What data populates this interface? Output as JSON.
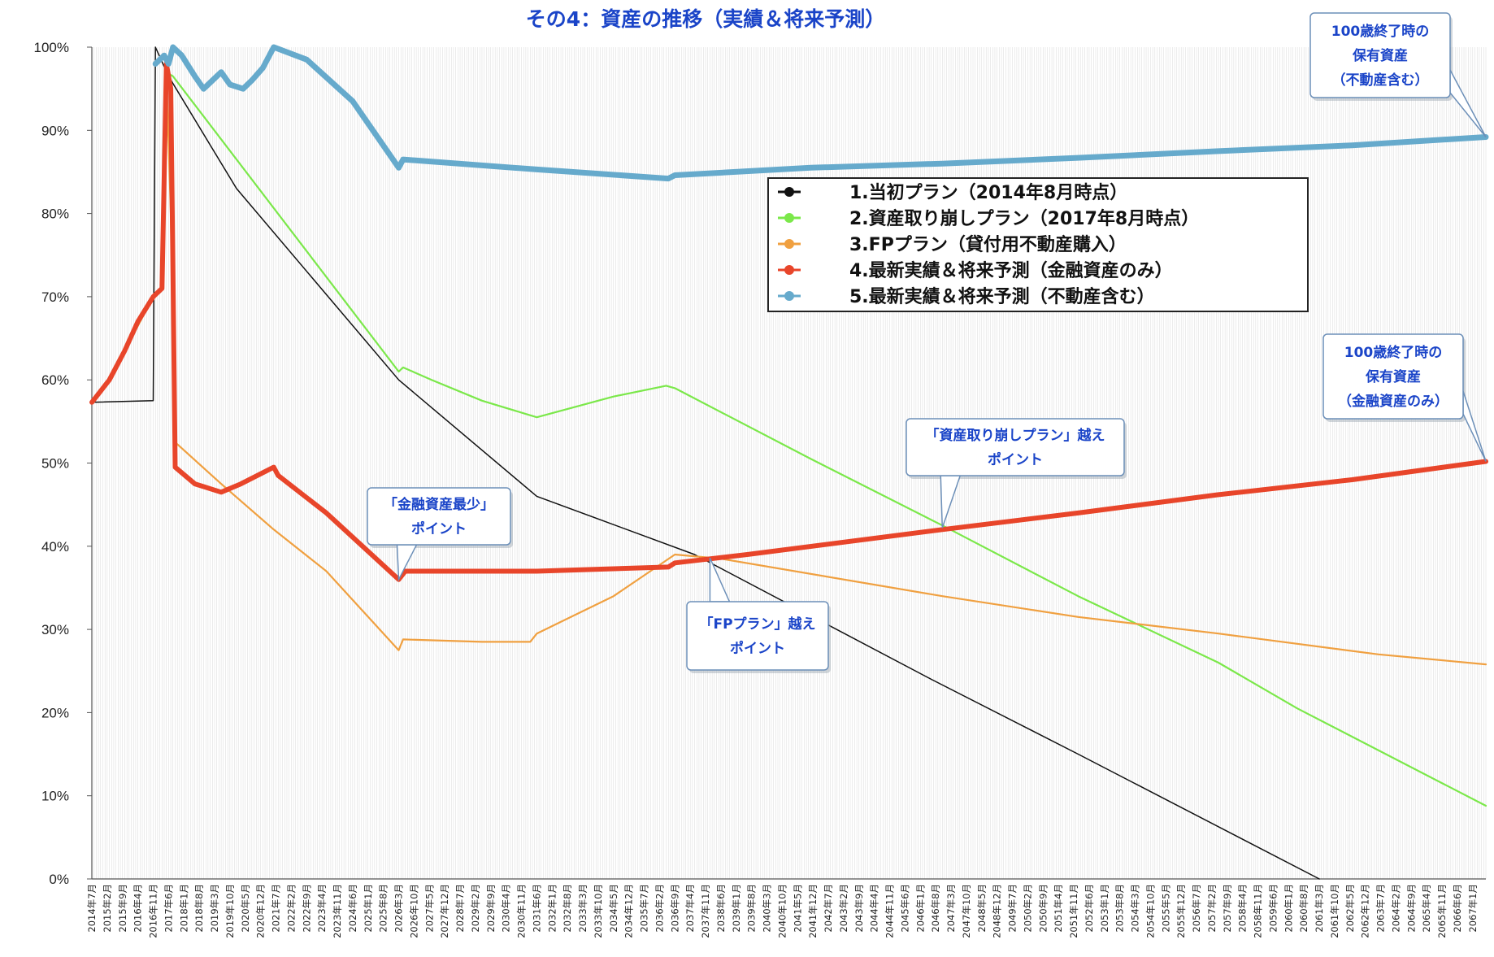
{
  "chart_data": {
    "type": "line",
    "title": "その4：資産の推移（実績＆将来予測）",
    "xlabel": "",
    "ylabel": "",
    "ylim": [
      0,
      100
    ],
    "yticks": [
      "0%",
      "10%",
      "20%",
      "30%",
      "40%",
      "50%",
      "60%",
      "70%",
      "80%",
      "90%",
      "100%"
    ],
    "grid": "vertical",
    "legend_position": "upper-center",
    "x_start": "2014-07",
    "x_end": "2067-07",
    "x_tick_labels": [
      "2014年7月",
      "2015年2月",
      "2015年9月",
      "2016年4月",
      "2016年11月",
      "2017年6月",
      "2018年1月",
      "2018年8月",
      "2019年3月",
      "2019年10月",
      "2020年5月",
      "2020年12月",
      "2021年7月",
      "2022年2月",
      "2022年9月",
      "2023年4月",
      "2023年11月",
      "2024年6月",
      "2025年1月",
      "2025年8月",
      "2026年3月",
      "2026年10月",
      "2027年5月",
      "2027年12月",
      "2028年7月",
      "2029年2月",
      "2029年9月",
      "2030年4月",
      "2030年11月",
      "2031年6月",
      "2032年1月",
      "2032年8月",
      "2033年3月",
      "2033年10月",
      "2034年5月",
      "2034年12月",
      "2035年7月",
      "2036年2月",
      "2036年9月",
      "2037年4月",
      "2037年11月",
      "2038年6月",
      "2039年1月",
      "2039年8月",
      "2040年3月",
      "2040年10月",
      "2041年5月",
      "2041年12月",
      "2042年7月",
      "2043年2月",
      "2043年9月",
      "2044年4月",
      "2044年11月",
      "2045年6月",
      "2046年1月",
      "2046年8月",
      "2047年3月",
      "2047年10月",
      "2048年5月",
      "2048年12月",
      "2049年7月",
      "2050年2月",
      "2050年9月",
      "2051年4月",
      "2051年11月",
      "2052年6月",
      "2053年1月",
      "2053年8月",
      "2054年3月",
      "2054年10月",
      "2055年5月",
      "2055年12月",
      "2056年7月",
      "2057年2月",
      "2057年9月",
      "2058年4月",
      "2058年11月",
      "2059年6月",
      "2060年1月",
      "2060年8月",
      "2061年3月",
      "2061年10月",
      "2062年5月",
      "2062年12月",
      "2063年7月",
      "2064年2月",
      "2064年9月",
      "2065年4月",
      "2065年11月",
      "2066年6月",
      "2067年1月"
    ],
    "series": [
      {
        "name": "1.当初プラン（2014年8月時点）",
        "color": "#111111",
        "x": [
          "2014-07",
          "2016-11",
          "2016-12",
          "2017-06",
          "2020-01",
          "2026-03",
          "2031-06",
          "2037-06",
          "2046-06",
          "2052-01",
          "2061-03"
        ],
        "values": [
          57.3,
          57.5,
          100,
          96.5,
          83,
          60,
          46,
          39,
          24,
          15,
          0
        ]
      },
      {
        "name": "2.資産取り崩しプラン（2017年8月時点）",
        "color": "#7be84a",
        "x": [
          "2014-07",
          "2015-03",
          "2016-03",
          "2016-11",
          "2017-03",
          "2017-05",
          "2017-08",
          "2026-03",
          "2026-05",
          "2027-06",
          "2029-05",
          "2031-06",
          "2034-05",
          "2036-05",
          "2036-09",
          "2041-11",
          "2046-11",
          "2052-01",
          "2057-05",
          "2060-05",
          "2067-07"
        ],
        "values": [
          57.3,
          60,
          66,
          70,
          71,
          97,
          96.5,
          61,
          61.5,
          60,
          57.5,
          55.5,
          58,
          59.3,
          59,
          50.5,
          42.5,
          34,
          26,
          20.5,
          8.8
        ]
      },
      {
        "name": "3.FPプラン（貸付用不動産購入）",
        "color": "#f0a040",
        "x": [
          "2014-07",
          "2015-03",
          "2016-03",
          "2016-11",
          "2017-03",
          "2017-05",
          "2017-07",
          "2017-09",
          "2019-06",
          "2021-06",
          "2023-06",
          "2026-03",
          "2026-05",
          "2029-05",
          "2031-03",
          "2031-06",
          "2034-05",
          "2036-09",
          "2038-06",
          "2046-11",
          "2052-01",
          "2057-05",
          "2063-06",
          "2067-07"
        ],
        "values": [
          57.3,
          60,
          66,
          70,
          71,
          97,
          80,
          52.5,
          47.5,
          42,
          37,
          27.5,
          28.8,
          28.5,
          28.5,
          29.5,
          34,
          39,
          38.5,
          34,
          31.5,
          29.5,
          27,
          25.8
        ]
      },
      {
        "name": "4.最新実績＆将来予測（金融資産のみ）",
        "color": "#e8452a",
        "x": [
          "2014-07",
          "2015-03",
          "2015-10",
          "2016-04",
          "2016-11",
          "2017-03",
          "2017-05",
          "2017-07",
          "2017-08",
          "2017-09",
          "2018-06",
          "2019-06",
          "2020-03",
          "2021-06",
          "2021-08",
          "2023-06",
          "2026-03",
          "2026-06",
          "2031-06",
          "2036-06",
          "2036-09",
          "2039-06",
          "2046-11",
          "2052-01",
          "2057-05",
          "2062-06",
          "2067-07"
        ],
        "values": [
          57.3,
          60,
          63.5,
          67,
          70,
          71,
          98,
          95,
          73,
          49.5,
          47.5,
          46.5,
          47.5,
          49.5,
          48.5,
          44,
          36,
          37,
          37,
          37.5,
          38,
          39,
          42,
          44,
          46.2,
          48,
          50.2
        ]
      },
      {
        "name": "5.最新実績＆将来予測（不動産含む）",
        "color": "#66aacc",
        "x": [
          "2016-12",
          "2017-04",
          "2017-06",
          "2017-08",
          "2017-12",
          "2018-06",
          "2018-10",
          "2019-06",
          "2019-10",
          "2020-04",
          "2020-08",
          "2021-01",
          "2021-06",
          "2022-09",
          "2024-06",
          "2026-03",
          "2026-05",
          "2031-06",
          "2036-06",
          "2036-09",
          "2041-11",
          "2046-11",
          "2052-01",
          "2057-05",
          "2062-06",
          "2067-07"
        ],
        "values": [
          98,
          99,
          98,
          100,
          99,
          96.5,
          95,
          97,
          95.5,
          95,
          96,
          97.5,
          100,
          98.5,
          93.5,
          85.5,
          86.5,
          85.3,
          84.2,
          84.6,
          85.5,
          86,
          86.7,
          87.5,
          88.2,
          89.2
        ]
      }
    ],
    "annotations": [
      {
        "lines": [
          "100歳終了時の",
          "保有資産",
          "（不動産含む）"
        ],
        "at": [
          "2067-07",
          89.2
        ]
      },
      {
        "lines": [
          "100歳終了時の",
          "保有資産",
          "（金融資産のみ）"
        ],
        "at": [
          "2067-07",
          50.2
        ]
      },
      {
        "lines": [
          "「金融資産最少」",
          "ポイント"
        ],
        "at": [
          "2026-03",
          36
        ]
      },
      {
        "lines": [
          "「資産取り崩しプラン」越え",
          "ポイント"
        ],
        "at": [
          "2046-11",
          42.2
        ]
      },
      {
        "lines": [
          "「FPプラン」越え",
          "ポイント"
        ],
        "at": [
          "2038-01",
          38.6
        ]
      }
    ]
  }
}
